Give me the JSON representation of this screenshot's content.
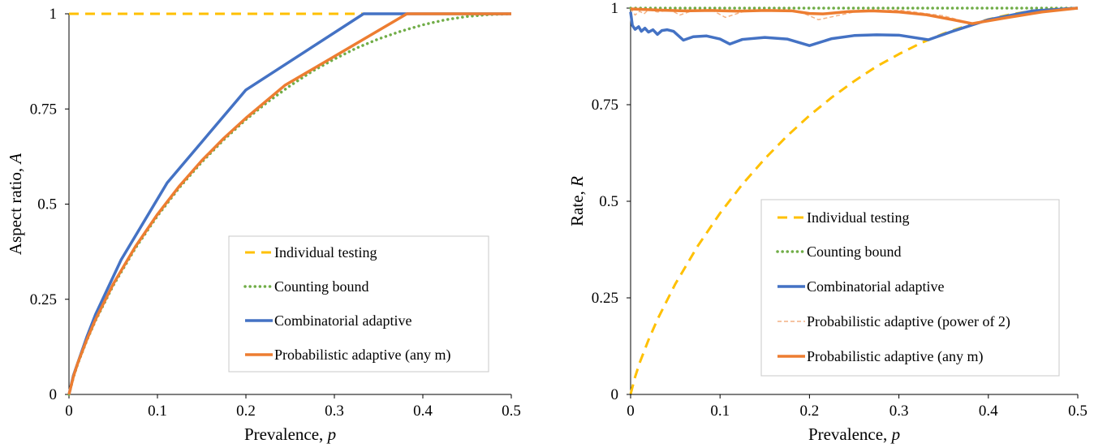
{
  "chart_data": [
    {
      "type": "line",
      "xlabel": "Prevalence, ",
      "xlabel_var": "p",
      "ylabel": "Aspect ratio, ",
      "ylabel_var": "A",
      "xlim": [
        0,
        0.5
      ],
      "ylim": [
        0,
        1
      ],
      "xticks": [
        "0",
        "0.1",
        "0.2",
        "0.3",
        "0.4",
        "0.5"
      ],
      "yticks": [
        "0",
        "0.25",
        "0.5",
        "0.75",
        "1"
      ],
      "grid": false,
      "legend_position": "bottom-right",
      "series": [
        {
          "name": "Individual testing",
          "color": "#FFC000",
          "style": "dashed",
          "points": [
            [
              0,
              1
            ],
            [
              0.5,
              1
            ]
          ]
        },
        {
          "name": "Counting bound",
          "color": "#70AD47",
          "style": "dotted",
          "points": [
            [
              0,
              0
            ],
            [
              0.005,
              0.045
            ],
            [
              0.01,
              0.081
            ],
            [
              0.02,
              0.141
            ],
            [
              0.03,
              0.194
            ],
            [
              0.05,
              0.286
            ],
            [
              0.075,
              0.384
            ],
            [
              0.1,
              0.469
            ],
            [
              0.125,
              0.544
            ],
            [
              0.15,
              0.61
            ],
            [
              0.175,
              0.669
            ],
            [
              0.2,
              0.722
            ],
            [
              0.225,
              0.769
            ],
            [
              0.25,
              0.811
            ],
            [
              0.275,
              0.849
            ],
            [
              0.3,
              0.881
            ],
            [
              0.325,
              0.91
            ],
            [
              0.35,
              0.934
            ],
            [
              0.375,
              0.954
            ],
            [
              0.4,
              0.971
            ],
            [
              0.425,
              0.984
            ],
            [
              0.45,
              0.993
            ],
            [
              0.475,
              0.998
            ],
            [
              0.5,
              1
            ]
          ]
        },
        {
          "name": "Combinatorial adaptive",
          "color": "#4472C4",
          "style": "solid",
          "points": [
            [
              0,
              0
            ],
            [
              0.005,
              0.05
            ],
            [
              0.02,
              0.15
            ],
            [
              0.03,
              0.21
            ],
            [
              0.059,
              0.354
            ],
            [
              0.111,
              0.556
            ],
            [
              0.2,
              0.8
            ],
            [
              0.333,
              1
            ],
            [
              0.5,
              1
            ]
          ]
        },
        {
          "name": "Probabilistic adaptive (any m)",
          "color": "#ED7D31",
          "style": "solid",
          "points": [
            [
              0,
              0
            ],
            [
              0.005,
              0.047
            ],
            [
              0.01,
              0.083
            ],
            [
              0.02,
              0.143
            ],
            [
              0.03,
              0.197
            ],
            [
              0.05,
              0.29
            ],
            [
              0.075,
              0.388
            ],
            [
              0.1,
              0.473
            ],
            [
              0.125,
              0.548
            ],
            [
              0.15,
              0.614
            ],
            [
              0.175,
              0.673
            ],
            [
              0.2,
              0.726
            ],
            [
              0.244,
              0.812
            ],
            [
              0.3,
              0.888
            ],
            [
              0.382,
              1
            ],
            [
              0.5,
              1
            ]
          ]
        }
      ]
    },
    {
      "type": "line",
      "xlabel": "Prevalence, ",
      "xlabel_var": "p",
      "ylabel": "Rate, ",
      "ylabel_var": "R",
      "xlim": [
        0,
        0.5
      ],
      "ylim": [
        0,
        1
      ],
      "xticks": [
        "0",
        "0.1",
        "0.2",
        "0.3",
        "0.4",
        "0.5"
      ],
      "yticks": [
        "0",
        "0.25",
        "0.5",
        "0.75",
        "1"
      ],
      "grid": false,
      "legend_position": "center-right",
      "series": [
        {
          "name": "Individual testing",
          "color": "#FFC000",
          "style": "dashed",
          "points": [
            [
              0.0001,
              0.0015
            ],
            [
              0.005,
              0.045
            ],
            [
              0.01,
              0.081
            ],
            [
              0.02,
              0.141
            ],
            [
              0.03,
              0.194
            ],
            [
              0.05,
              0.286
            ],
            [
              0.075,
              0.384
            ],
            [
              0.1,
              0.469
            ],
            [
              0.125,
              0.544
            ],
            [
              0.15,
              0.61
            ],
            [
              0.175,
              0.669
            ],
            [
              0.2,
              0.722
            ],
            [
              0.225,
              0.769
            ],
            [
              0.25,
              0.811
            ],
            [
              0.275,
              0.849
            ],
            [
              0.3,
              0.881
            ],
            [
              0.325,
              0.91
            ],
            [
              0.35,
              0.934
            ],
            [
              0.375,
              0.954
            ],
            [
              0.4,
              0.971
            ],
            [
              0.425,
              0.984
            ],
            [
              0.45,
              0.993
            ],
            [
              0.475,
              0.998
            ],
            [
              0.5,
              1
            ]
          ]
        },
        {
          "name": "Counting bound",
          "color": "#70AD47",
          "style": "dotted",
          "points": [
            [
              0,
              1
            ],
            [
              0.5,
              1
            ]
          ]
        },
        {
          "name": "Combinatorial adaptive",
          "color": "#4472C4",
          "style": "solid",
          "points": [
            [
              0,
              0.99
            ],
            [
              0.002,
              0.955
            ],
            [
              0.005,
              0.945
            ],
            [
              0.009,
              0.952
            ],
            [
              0.012,
              0.94
            ],
            [
              0.016,
              0.948
            ],
            [
              0.02,
              0.938
            ],
            [
              0.025,
              0.944
            ],
            [
              0.03,
              0.932
            ],
            [
              0.035,
              0.942
            ],
            [
              0.041,
              0.944
            ],
            [
              0.048,
              0.94
            ],
            [
              0.059,
              0.917
            ],
            [
              0.07,
              0.926
            ],
            [
              0.085,
              0.928
            ],
            [
              0.1,
              0.92
            ],
            [
              0.111,
              0.907
            ],
            [
              0.125,
              0.919
            ],
            [
              0.15,
              0.924
            ],
            [
              0.175,
              0.92
            ],
            [
              0.2,
              0.903
            ],
            [
              0.225,
              0.921
            ],
            [
              0.25,
              0.929
            ],
            [
              0.275,
              0.931
            ],
            [
              0.3,
              0.93
            ],
            [
              0.333,
              0.918
            ],
            [
              0.36,
              0.94
            ],
            [
              0.4,
              0.97
            ],
            [
              0.45,
              0.993
            ],
            [
              0.5,
              1
            ]
          ]
        },
        {
          "name": "Probabilistic adaptive (power of 2)",
          "color": "#F4B183",
          "style": "dashed-thin",
          "points": [
            [
              0,
              1
            ],
            [
              0.005,
              0.982
            ],
            [
              0.01,
              0.992
            ],
            [
              0.015,
              0.985
            ],
            [
              0.02,
              0.996
            ],
            [
              0.03,
              0.99
            ],
            [
              0.045,
              0.995
            ],
            [
              0.055,
              0.982
            ],
            [
              0.07,
              0.994
            ],
            [
              0.09,
              0.996
            ],
            [
              0.106,
              0.976
            ],
            [
              0.13,
              0.994
            ],
            [
              0.16,
              0.996
            ],
            [
              0.19,
              0.99
            ],
            [
              0.21,
              0.97
            ],
            [
              0.25,
              0.99
            ],
            [
              0.3,
              0.995
            ],
            [
              0.35,
              0.98
            ],
            [
              0.382,
              0.96
            ],
            [
              0.42,
              0.975
            ],
            [
              0.46,
              0.99
            ],
            [
              0.5,
              1
            ]
          ]
        },
        {
          "name": "Probabilistic adaptive (any m)",
          "color": "#ED7D31",
          "style": "solid",
          "points": [
            [
              0,
              0.998
            ],
            [
              0.03,
              0.995
            ],
            [
              0.06,
              0.993
            ],
            [
              0.09,
              0.994
            ],
            [
              0.12,
              0.992
            ],
            [
              0.15,
              0.994
            ],
            [
              0.18,
              0.993
            ],
            [
              0.2,
              0.986
            ],
            [
              0.215,
              0.985
            ],
            [
              0.244,
              0.991
            ],
            [
              0.27,
              0.993
            ],
            [
              0.3,
              0.99
            ],
            [
              0.33,
              0.983
            ],
            [
              0.36,
              0.97
            ],
            [
              0.382,
              0.96
            ],
            [
              0.42,
              0.975
            ],
            [
              0.46,
              0.99
            ],
            [
              0.5,
              1
            ]
          ]
        }
      ]
    }
  ]
}
